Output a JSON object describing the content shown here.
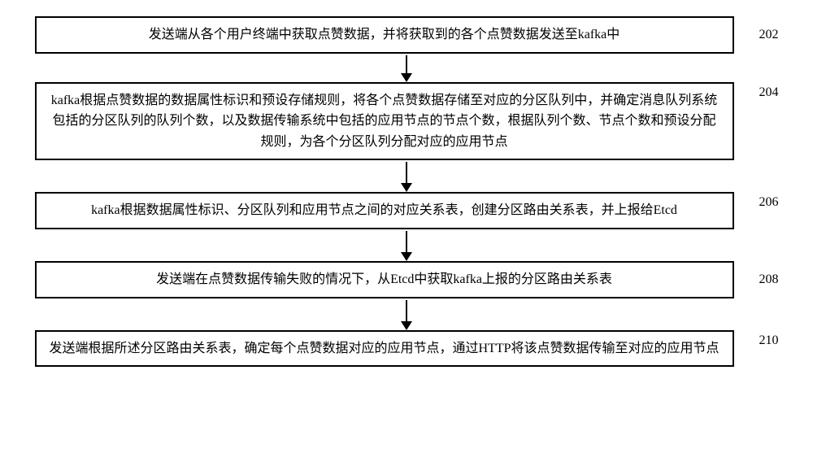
{
  "flow": {
    "text_color": "#000000",
    "border_color": "#000000",
    "background_color": "#ffffff",
    "font_size_pt": 14,
    "line_height": 1.6,
    "box_border_width": 2,
    "arrow_line_width": 2,
    "arrow_head_w": 14,
    "arrow_head_h": 11,
    "steps": [
      {
        "label": "202",
        "text": "发送端从各个用户终端中获取点赞数据，并将获取到的各个点赞数据发送至kafka中"
      },
      {
        "label": "204",
        "text": "kafka根据点赞数据的数据属性标识和预设存储规则，将各个点赞数据存储至对应的分区队列中，并确定消息队列系统包括的分区队列的队列个数，以及数据传输系统中包括的应用节点的节点个数，根据队列个数、节点个数和预设分配规则，为各个分区队列分配对应的应用节点"
      },
      {
        "label": "206",
        "text": "kafka根据数据属性标识、分区队列和应用节点之间的对应关系表，创建分区路由关系表，并上报给Etcd"
      },
      {
        "label": "208",
        "text": "发送端在点赞数据传输失败的情况下，从Etcd中获取kafka上报的分区路由关系表"
      },
      {
        "label": "210",
        "text": "发送端根据所述分区路由关系表，确定每个点赞数据对应的应用节点，通过HTTP将该点赞数据传输至对应的应用节点"
      }
    ]
  }
}
